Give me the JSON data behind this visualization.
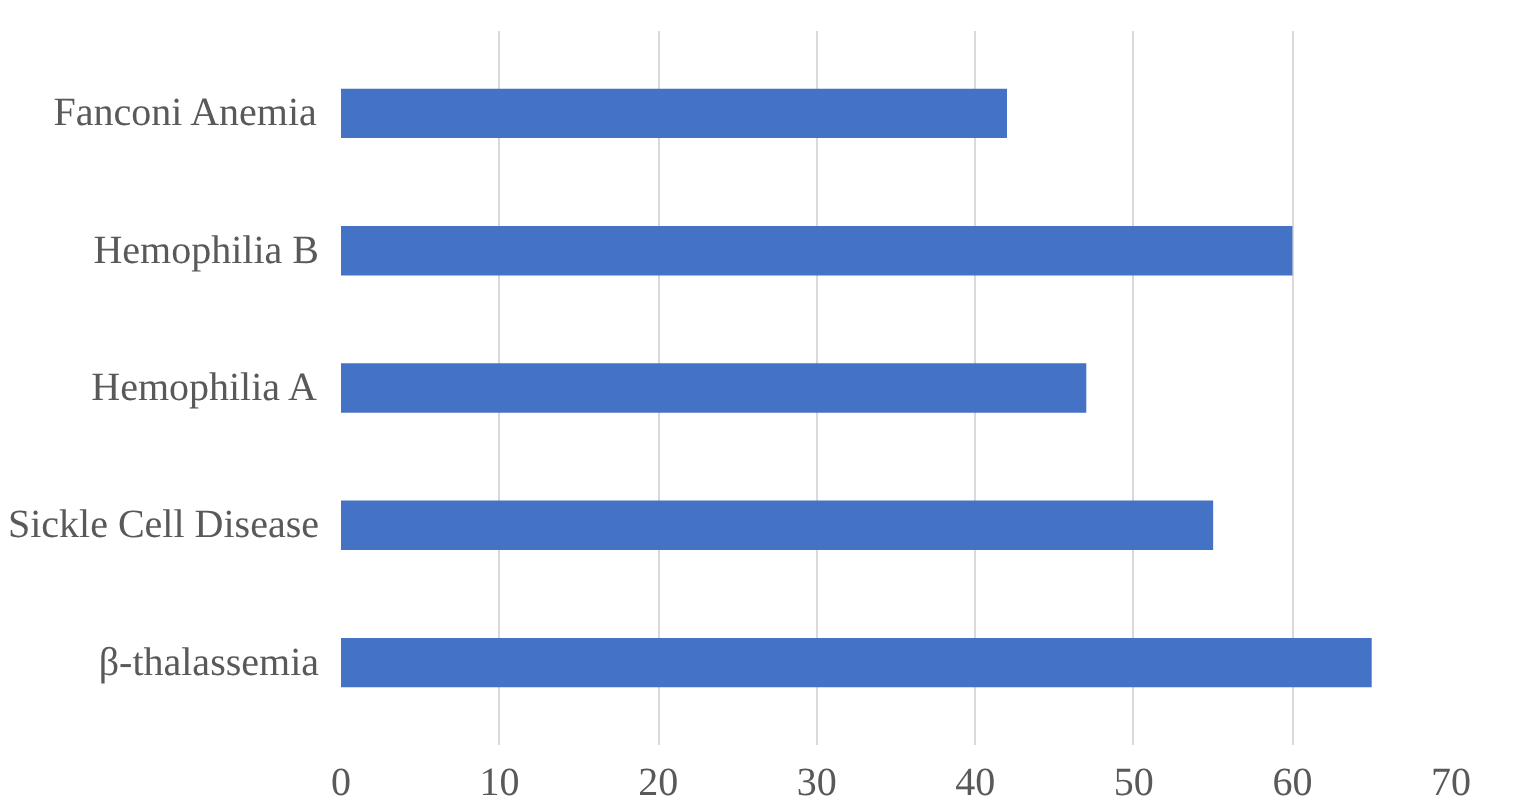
{
  "chart_data": {
    "type": "bar",
    "orientation": "horizontal",
    "categories": [
      "Fanconi Anemia",
      "Hemophilia B",
      "Hemophilia A",
      "Sickle Cell Disease",
      "β-thalassemia"
    ],
    "values": [
      42,
      60,
      47,
      55,
      65
    ],
    "color": "#4472c4",
    "xlim": [
      0,
      70
    ],
    "xticks": [
      0,
      10,
      20,
      30,
      40,
      50,
      60,
      70
    ],
    "grid": "x"
  }
}
